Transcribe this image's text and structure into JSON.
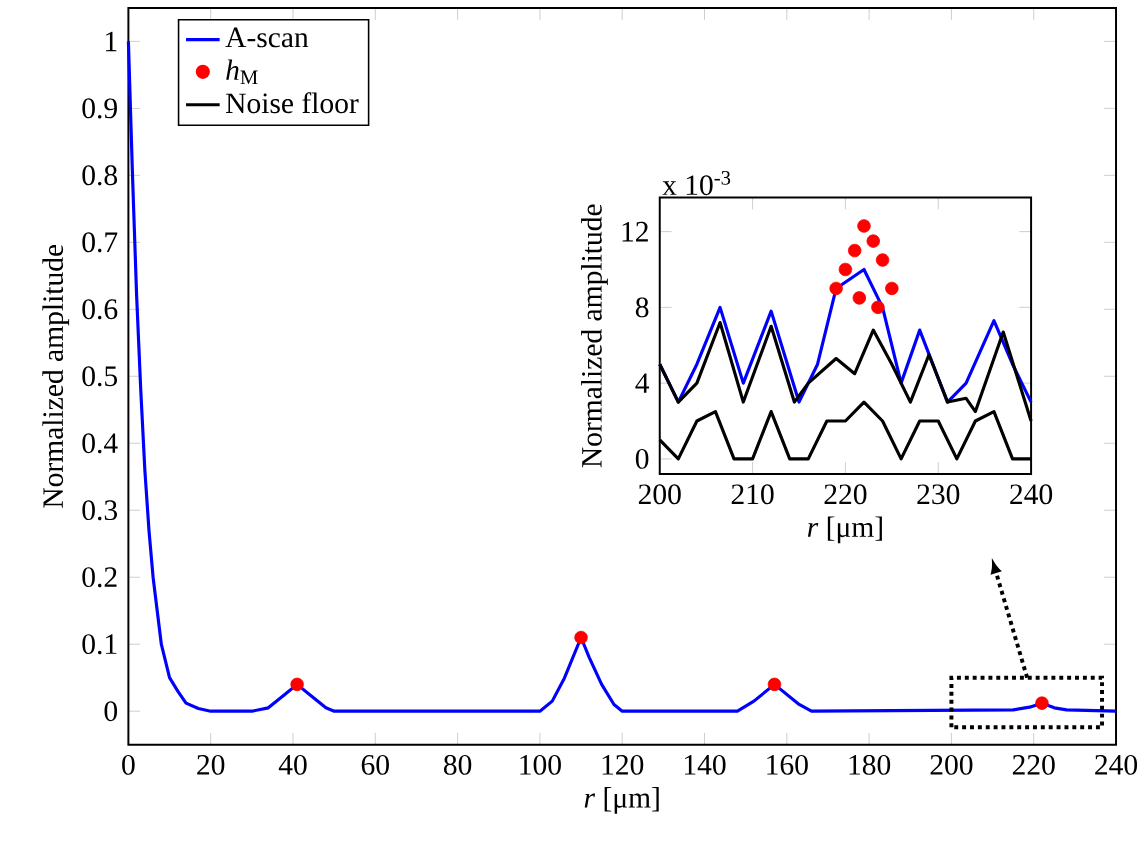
{
  "chart_data": [
    {
      "type": "line",
      "xlabel": "*r* [μm]",
      "ylabel": "Normalized amplitude",
      "xlim": [
        0,
        240
      ],
      "ylim": [
        -0.05,
        1.05
      ],
      "xticks": [
        0,
        20,
        40,
        60,
        80,
        100,
        120,
        140,
        160,
        180,
        200,
        220,
        240
      ],
      "yticks": [
        0,
        0.1,
        0.2,
        0.3,
        0.4,
        0.5,
        0.6,
        0.7,
        0.8,
        0.9,
        1
      ],
      "legend": "top left",
      "grid": false,
      "series": [
        {
          "name": "A-scan",
          "color": "#0000ff",
          "x": [
            0,
            1,
            2,
            3,
            4,
            5,
            6,
            8,
            10,
            12,
            14,
            17,
            20,
            30,
            34,
            38,
            41,
            44,
            48,
            50,
            100,
            103,
            106,
            110,
            112,
            115,
            118,
            120,
            148,
            152,
            157,
            160,
            163,
            166,
            215,
            219,
            222,
            225,
            228,
            240
          ],
          "values": [
            1,
            0.8,
            0.62,
            0.48,
            0.36,
            0.27,
            0.2,
            0.1,
            0.05,
            0.03,
            0.012,
            0.004,
            0,
            0,
            0.005,
            0.025,
            0.04,
            0.025,
            0.005,
            0,
            0,
            0.015,
            0.05,
            0.11,
            0.08,
            0.04,
            0.01,
            0,
            0,
            0.015,
            0.04,
            0.025,
            0.01,
            0,
            0.002,
            0.006,
            0.012,
            0.005,
            0.002,
            0
          ]
        },
        {
          "name": "*h*$_{M}$",
          "type": "scatter",
          "color": "#ff0000",
          "x": [
            41,
            110,
            157,
            222
          ],
          "values": [
            0.04,
            0.11,
            0.04,
            0.012
          ]
        },
        {
          "name": "Noise floor",
          "color": "#000000"
        }
      ]
    },
    {
      "type": "line",
      "xlabel": "*r* [μm]",
      "ylabel": "Normalized amplitude",
      "xlim": [
        200,
        240
      ],
      "ylim": [
        -0.8,
        13.8
      ],
      "xticks": [
        200,
        210,
        220,
        230,
        240
      ],
      "yticks": [
        0,
        4,
        8,
        12
      ],
      "grid": false,
      "annotations": [
        "x 10$^{-3}$"
      ],
      "series": [
        {
          "color": "#0000ff",
          "x": [
            200,
            202,
            204,
            206.5,
            209,
            212,
            215,
            217,
            219,
            222,
            224,
            226,
            228,
            231,
            233,
            236,
            238,
            240
          ],
          "values": [
            5,
            3,
            5,
            8,
            4,
            7.8,
            3,
            5,
            9,
            10,
            8,
            4,
            6.8,
            3,
            4,
            7.3,
            5,
            3
          ]
        },
        {
          "color": "#000000",
          "x": [
            200,
            202,
            204,
            206.5,
            209,
            212,
            214.5,
            216,
            219,
            221,
            223,
            225,
            227,
            229,
            231,
            233,
            234,
            237,
            240
          ],
          "values": [
            5,
            3,
            4,
            7.2,
            3,
            7,
            3,
            4,
            5.3,
            4.5,
            6.8,
            5,
            3,
            5.5,
            3,
            3.2,
            2.5,
            6.7,
            2
          ]
        },
        {
          "color": "#000000",
          "x": [
            200,
            202,
            204,
            206,
            208,
            210,
            212,
            214,
            216,
            218,
            220,
            222,
            224,
            226,
            228,
            230,
            232,
            234,
            236,
            238,
            240
          ],
          "values": [
            1,
            0,
            2,
            2.5,
            0,
            0,
            2.5,
            0,
            0,
            2,
            2,
            3,
            2,
            0,
            2,
            2,
            0,
            2,
            2.5,
            0,
            0
          ]
        },
        {
          "type": "scatter",
          "color": "#ff0000",
          "x": [
            219,
            220,
            221,
            221.5,
            222,
            223,
            223.5,
            224,
            225
          ],
          "values": [
            9,
            10,
            11,
            8.5,
            12.3,
            11.5,
            8,
            10.5,
            9
          ]
        }
      ]
    }
  ]
}
